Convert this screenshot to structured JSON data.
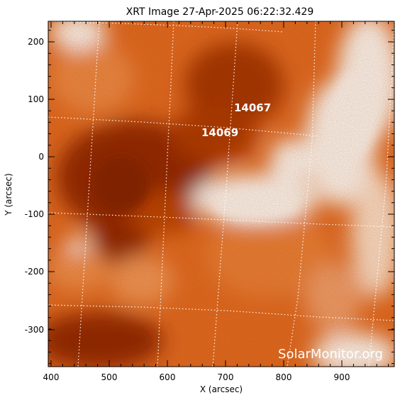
{
  "title": "XRT Image 27-Apr-2025 06:22:32.429",
  "x_axis": {
    "label": "X (arcsec)",
    "ticks": [
      "400",
      "500",
      "600",
      "700",
      "800",
      "900"
    ]
  },
  "y_axis": {
    "label": "Y (arcsec)",
    "ticks": [
      "200",
      "100",
      "0",
      "-100",
      "-200",
      "-300"
    ]
  },
  "active_regions": [
    {
      "number": "14067"
    },
    {
      "number": "14069"
    }
  ],
  "watermark": "SolarMonitor.org",
  "colors": {
    "frame": "#000000",
    "grid": "#ffffff",
    "dark_red": "#7a1800",
    "orange": "#e0661a",
    "bright": "#ffffff"
  }
}
